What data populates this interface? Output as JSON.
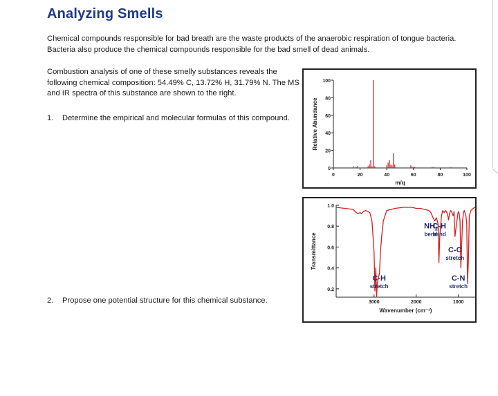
{
  "title": "Analyzing Smells",
  "intro": "Chemical compounds responsible for bad breath are the waste products of the anaerobic respiration of tongue bacteria. Bacteria also produce the chemical compounds responsible for the bad smell of dead animals.",
  "para2": "Combustion analysis of one of these smelly substances reveals the following chemical composition: 54.49% C, 13.72% H, 31.79% N. The MS and IR spectra of this substance are shown to the right.",
  "questions": [
    {
      "number": "1.",
      "text": "Determine the empirical and molecular formulas of this compound."
    },
    {
      "number": "2.",
      "text": "Propose one potential structure for this chemical substance."
    }
  ],
  "chart_data": [
    {
      "type": "bar",
      "xlabel": "m/q",
      "ylabel": "Relative Abundance",
      "xlim": [
        0,
        100
      ],
      "ylim": [
        0,
        100
      ],
      "xticks": [
        "0",
        "20",
        "40",
        "60",
        "80",
        "100"
      ],
      "yticks": [
        "0",
        "20",
        "40",
        "60",
        "80",
        "100"
      ],
      "x": [
        15,
        17,
        18,
        26,
        27,
        28,
        29,
        30,
        31,
        40,
        41,
        42,
        43,
        44,
        45,
        46,
        58,
        59,
        60,
        61,
        74,
        75,
        88
      ],
      "values": [
        2,
        1,
        2,
        2,
        4,
        9,
        2,
        100,
        2,
        3,
        6,
        9,
        4,
        3,
        17,
        4,
        3,
        1,
        1,
        1,
        1,
        1,
        1
      ],
      "color": "#d21f1f"
    },
    {
      "type": "line",
      "xlabel": "Wavenumber (cm⁻¹)",
      "ylabel": "Transmittance",
      "xlim": [
        3900,
        600
      ],
      "ylim": [
        0.12,
        1.0
      ],
      "xticks": [
        "3000",
        "2000",
        "1000"
      ],
      "yticks": [
        "1.0",
        "0.8",
        "0.6",
        "0.4",
        "0.2"
      ],
      "x": [
        3900,
        3700,
        3500,
        3420,
        3380,
        3330,
        3300,
        3250,
        3200,
        3100,
        3050,
        3000,
        2980,
        2960,
        2940,
        2925,
        2900,
        2870,
        2850,
        2820,
        2780,
        2700,
        2500,
        2300,
        2100,
        2000,
        1900,
        1800,
        1700,
        1650,
        1600,
        1560,
        1520,
        1480,
        1460,
        1440,
        1400,
        1370,
        1340,
        1300,
        1260,
        1230,
        1210,
        1180,
        1150,
        1120,
        1100,
        1080,
        1050,
        1010,
        1000,
        980,
        960,
        940,
        900,
        880,
        860,
        820,
        800,
        780,
        760,
        740,
        700,
        650,
        600
      ],
      "y": [
        0.98,
        0.97,
        0.96,
        0.93,
        0.92,
        0.93,
        0.92,
        0.94,
        0.95,
        0.93,
        0.85,
        0.55,
        0.18,
        0.4,
        0.12,
        0.25,
        0.3,
        0.35,
        0.55,
        0.7,
        0.85,
        0.95,
        0.97,
        0.98,
        0.98,
        0.97,
        0.97,
        0.96,
        0.95,
        0.93,
        0.88,
        0.85,
        0.88,
        0.82,
        0.45,
        0.7,
        0.9,
        0.95,
        0.93,
        0.95,
        0.92,
        0.86,
        0.92,
        0.95,
        0.93,
        0.9,
        0.94,
        0.7,
        0.8,
        0.92,
        0.94,
        0.92,
        0.85,
        0.4,
        0.85,
        0.92,
        0.95,
        0.9,
        0.82,
        0.25,
        0.5,
        0.9,
        0.95,
        0.97,
        0.98
      ],
      "color": "#d21f1f",
      "annotations": [
        {
          "text": "NH",
          "sub": "2",
          "text2": "bend",
          "wavenumber": 1650,
          "level": 0.78
        },
        {
          "text": "C-H",
          "text2": "bend",
          "wavenumber": 1450,
          "level": 0.78
        },
        {
          "text": "C-C",
          "text2": "stretch",
          "wavenumber": 1080,
          "level": 0.55
        },
        {
          "text": "C-N",
          "text2": "stretch",
          "wavenumber": 1000,
          "level": 0.28
        },
        {
          "text": "C-H",
          "text2": "stretch",
          "wavenumber": 2880,
          "level": 0.28
        }
      ]
    }
  ]
}
